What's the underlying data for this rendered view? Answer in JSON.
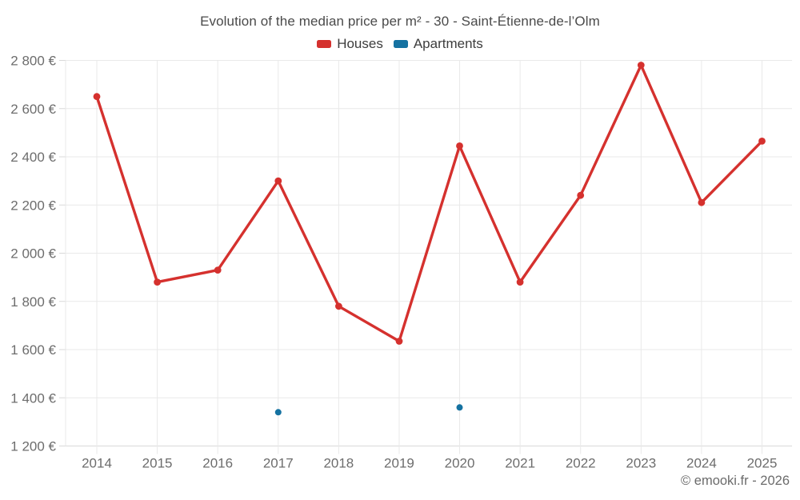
{
  "header": {
    "title": "Evolution of the median price per m² - 30 - Saint-Étienne-de-l’Olm"
  },
  "legend": {
    "items": [
      {
        "label": "Houses",
        "color": "#d5312e"
      },
      {
        "label": "Apartments",
        "color": "#1572a1"
      }
    ]
  },
  "chart_data": {
    "type": "line",
    "title": "Evolution of the median price per m² - 30 - Saint-Étienne-de-l’Olm",
    "x_labels": [
      "2014",
      "2015",
      "2016",
      "2017",
      "2018",
      "2019",
      "2020",
      "2021",
      "2022",
      "2023",
      "2024",
      "2025"
    ],
    "series": [
      {
        "name": "Houses",
        "color": "#d5312e",
        "mode": "line+markers",
        "values": [
          2650,
          1880,
          1930,
          2300,
          1780,
          1635,
          2445,
          1880,
          2240,
          2780,
          2210,
          2465
        ]
      },
      {
        "name": "Apartments",
        "color": "#1572a1",
        "mode": "markers",
        "values": [
          null,
          null,
          null,
          1340,
          null,
          null,
          1360,
          null,
          null,
          null,
          null,
          null
        ]
      }
    ],
    "ylim": [
      1200,
      2800
    ],
    "ytick_values": [
      1200,
      1400,
      1600,
      1800,
      2000,
      2200,
      2400,
      2600,
      2800
    ],
    "ytick_labels": [
      "1 200 €",
      "1 400 €",
      "1 600 €",
      "1 800 €",
      "2 000 €",
      "2 200 €",
      "2 400 €",
      "2 600 €",
      "2 800 €"
    ],
    "grid": true,
    "legend_position": "top",
    "grid_color": "#e9e9e9",
    "axis_color": "#d9d9d9",
    "tick_label_color": "#6d6d6d"
  },
  "footer": {
    "copyright": "© emooki.fr - 2026"
  }
}
